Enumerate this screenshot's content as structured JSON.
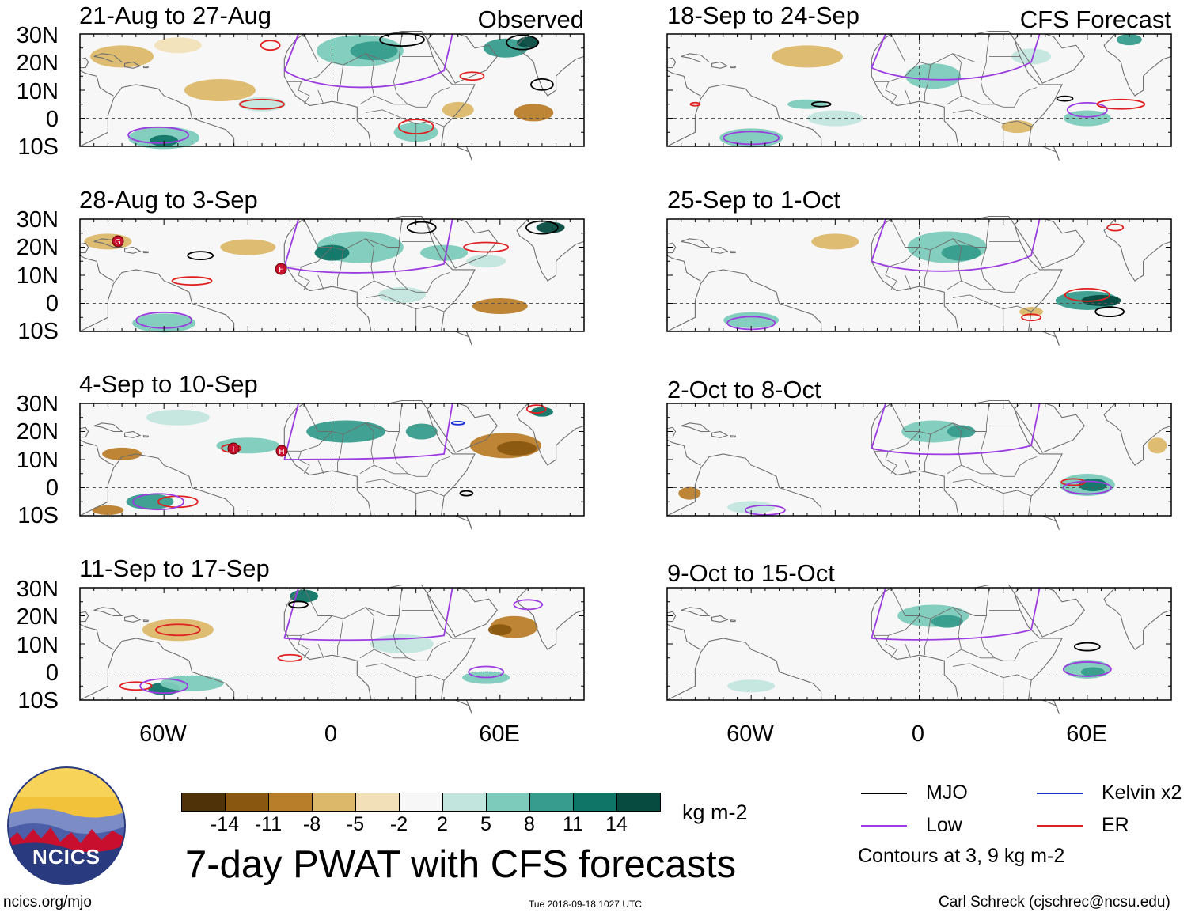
{
  "figure_title": "7-day PWAT with CFS forecasts",
  "observed_label": "Observed",
  "forecast_label": "CFS Forecast",
  "lat_labels": [
    "30N",
    "20N",
    "10N",
    "0",
    "10S"
  ],
  "lon_labels": [
    "60W",
    "0",
    "60E"
  ],
  "panels": {
    "obs": [
      {
        "title": "21-Aug to 27-Aug"
      },
      {
        "title": "28-Aug to 3-Sep"
      },
      {
        "title": "4-Sep to 10-Sep"
      },
      {
        "title": "11-Sep to 17-Sep"
      }
    ],
    "fcst": [
      {
        "title": "18-Sep to 24-Sep"
      },
      {
        "title": "25-Sep to 1-Oct"
      },
      {
        "title": "2-Oct to 8-Oct"
      },
      {
        "title": "9-Oct to 15-Oct"
      }
    ]
  },
  "storm_markers": [
    "G",
    "F",
    "I",
    "H"
  ],
  "colorbar": {
    "unit": "kg m-2",
    "labels": [
      "-14",
      "-11",
      "-8",
      "-5",
      "-2",
      "2",
      "5",
      "8",
      "11",
      "14"
    ],
    "colors": [
      "#4f3208",
      "#8a5710",
      "#b97e2a",
      "#dcb86a",
      "#f2e1b8",
      "#f7f7f7",
      "#c2e6dd",
      "#7ccbbb",
      "#379c8d",
      "#0f7566",
      "#064a40"
    ]
  },
  "legend": {
    "mjo": {
      "label": "MJO",
      "color": "#000000"
    },
    "kelvin": {
      "label": "Kelvin x2",
      "color": "#1a2fd6"
    },
    "low": {
      "label": "Low",
      "color": "#9b3be0"
    },
    "er": {
      "label": "ER",
      "color": "#e02020"
    },
    "note": "Contours at 3, 9 kg m-2"
  },
  "logo_text": "NCICS",
  "footer": {
    "left": "ncics.org/mjo",
    "center": "Tue 2018-09-18 1027 UTC",
    "right": "Carl Schreck (cjschrec@ncsu.edu)"
  }
}
